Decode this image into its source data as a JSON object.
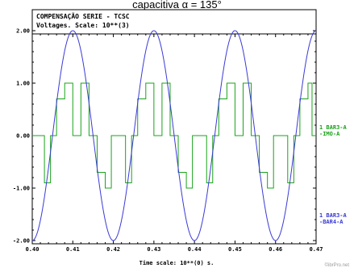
{
  "caption": "capacitiva α = 135°",
  "chart_data": {
    "type": "line",
    "title": "COMPENSAÇÃO SERIE - TCSC",
    "subtitle": "Voltages. Scale: 10**(3)",
    "xlabel": "Time scale: 10**(0) s.",
    "xlim": [
      0.4,
      0.47
    ],
    "ylim": [
      -2.0,
      2.0
    ],
    "x_ticks": [
      "0.40",
      "0.41",
      "0.42",
      "0.43",
      "0.44",
      "0.45",
      "0.46",
      "0.47"
    ],
    "y_ticks": [
      "2.00",
      "1.00",
      "0.00",
      "-1.00",
      "-2.00"
    ],
    "grid": false,
    "series": [
      {
        "name": "1 BAR3-A -IMO-A",
        "label_lines": [
          "1 BAR3-A",
          "-IMO-A"
        ],
        "color": "#1aa31a",
        "description": "piecewise",
        "points": [
          [
            0.4,
            0.0
          ],
          [
            0.403,
            0.0
          ],
          [
            0.403,
            -0.9
          ],
          [
            0.4045,
            -0.9
          ],
          [
            0.4045,
            0.0
          ],
          [
            0.406,
            0.0
          ],
          [
            0.406,
            0.7
          ],
          [
            0.408,
            0.7
          ],
          [
            0.408,
            1.0
          ],
          [
            0.41,
            1.0
          ],
          [
            0.41,
            0.0
          ],
          [
            0.412,
            0.0
          ],
          [
            0.412,
            1.0
          ],
          [
            0.414,
            1.0
          ],
          [
            0.414,
            0.0
          ],
          [
            0.416,
            0.0
          ],
          [
            0.416,
            -0.7
          ],
          [
            0.418,
            -0.7
          ],
          [
            0.418,
            -1.0
          ],
          [
            0.4195,
            -1.0
          ],
          [
            0.4195,
            0.0
          ],
          [
            0.423,
            0.0
          ],
          [
            0.423,
            -0.9
          ],
          [
            0.4245,
            -0.9
          ],
          [
            0.4245,
            0.0
          ],
          [
            0.426,
            0.0
          ],
          [
            0.426,
            0.7
          ],
          [
            0.428,
            0.7
          ],
          [
            0.428,
            1.0
          ],
          [
            0.43,
            1.0
          ],
          [
            0.43,
            0.0
          ],
          [
            0.432,
            0.0
          ],
          [
            0.432,
            1.0
          ],
          [
            0.434,
            1.0
          ],
          [
            0.434,
            0.0
          ],
          [
            0.436,
            0.0
          ],
          [
            0.436,
            -0.7
          ],
          [
            0.438,
            -0.7
          ],
          [
            0.438,
            -1.0
          ],
          [
            0.4395,
            -1.0
          ],
          [
            0.4395,
            0.0
          ],
          [
            0.443,
            0.0
          ],
          [
            0.443,
            -0.9
          ],
          [
            0.4445,
            -0.9
          ],
          [
            0.4445,
            0.0
          ],
          [
            0.446,
            0.0
          ],
          [
            0.446,
            0.7
          ],
          [
            0.448,
            0.7
          ],
          [
            0.448,
            1.0
          ],
          [
            0.45,
            1.0
          ],
          [
            0.45,
            0.0
          ],
          [
            0.452,
            0.0
          ],
          [
            0.452,
            1.0
          ],
          [
            0.454,
            1.0
          ],
          [
            0.454,
            0.0
          ],
          [
            0.456,
            0.0
          ],
          [
            0.456,
            -0.7
          ],
          [
            0.458,
            -0.7
          ],
          [
            0.458,
            -1.0
          ],
          [
            0.4595,
            -1.0
          ],
          [
            0.4595,
            0.0
          ],
          [
            0.463,
            0.0
          ],
          [
            0.463,
            -0.9
          ],
          [
            0.4645,
            -0.9
          ],
          [
            0.4645,
            0.0
          ],
          [
            0.466,
            0.0
          ],
          [
            0.466,
            0.7
          ],
          [
            0.468,
            0.7
          ],
          [
            0.468,
            1.0
          ],
          [
            0.469,
            1.0
          ],
          [
            0.469,
            0.0
          ],
          [
            0.47,
            0.0
          ]
        ]
      },
      {
        "name": "1 BAR3-A -BAR4-A",
        "label_lines": [
          "1 BAR3-A",
          "-BAR4-A"
        ],
        "color": "#3a3ad6",
        "amplitude": 2.0,
        "period": 0.02,
        "peak_at": 0.41
      }
    ],
    "watermark": "©ibrPro.net"
  }
}
